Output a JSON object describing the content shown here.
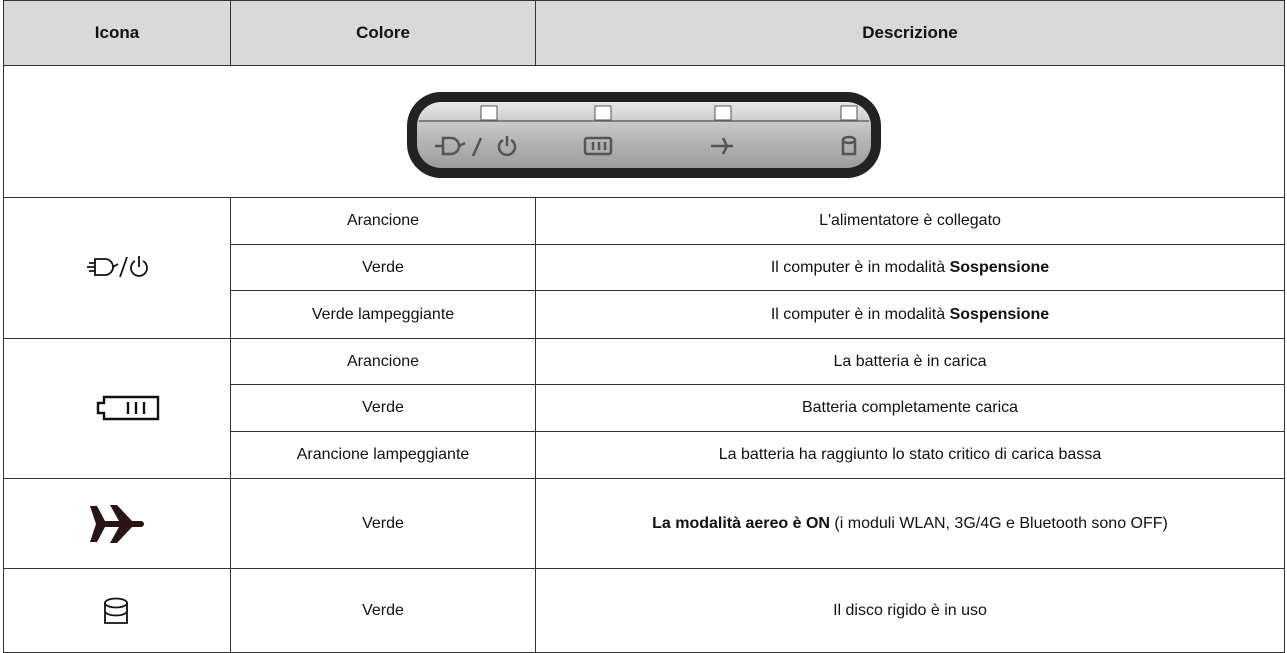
{
  "table": {
    "header": [
      "Icona",
      "Colore",
      "Descrizione"
    ],
    "groups": [
      {
        "rows": [
          {
            "color": "Arancione",
            "description": [
              {
                "text": "L'alimentatore è collegato",
                "bold": false
              }
            ]
          },
          {
            "color": "Verde",
            "description": [
              {
                "text": "Il computer è in modalità",
                "bold": false
              },
              {
                "text": "Sospensione",
                "bold": true
              }
            ]
          },
          {
            "color": "Verde lampeggiante",
            "description": [
              {
                "text": "Il computer è in modalità",
                "bold": false
              },
              {
                "text": "Sospensione",
                "bold": true
              }
            ]
          }
        ]
      },
      {
        "rows": [
          {
            "color": "Arancione",
            "description": [
              {
                "text": "La batteria è in carica",
                "bold": false
              }
            ]
          },
          {
            "color": "Verde",
            "description": [
              {
                "text": "Batteria completamente carica",
                "bold": false
              }
            ]
          },
          {
            "color": "Arancione lampeggiante",
            "description": [
              {
                "text": "La batteria ha raggiunto lo stato critico di carica bassa",
                "bold": false
              }
            ]
          }
        ]
      },
      {
        "rows": [
          {
            "color": "Verde",
            "description": [
              {
                "text": "La modalità aereo è ON",
                "bold": true
              },
              {
                "text": "(i moduli WLAN, 3G/4G e Bluetooth sono OFF)",
                "bold": false
              }
            ]
          }
        ]
      },
      {
        "rows": [
          {
            "color": "Verde",
            "description": [
              {
                "text": "Il disco rigido è in uso",
                "bold": false
              }
            ]
          }
        ]
      }
    ]
  }
}
